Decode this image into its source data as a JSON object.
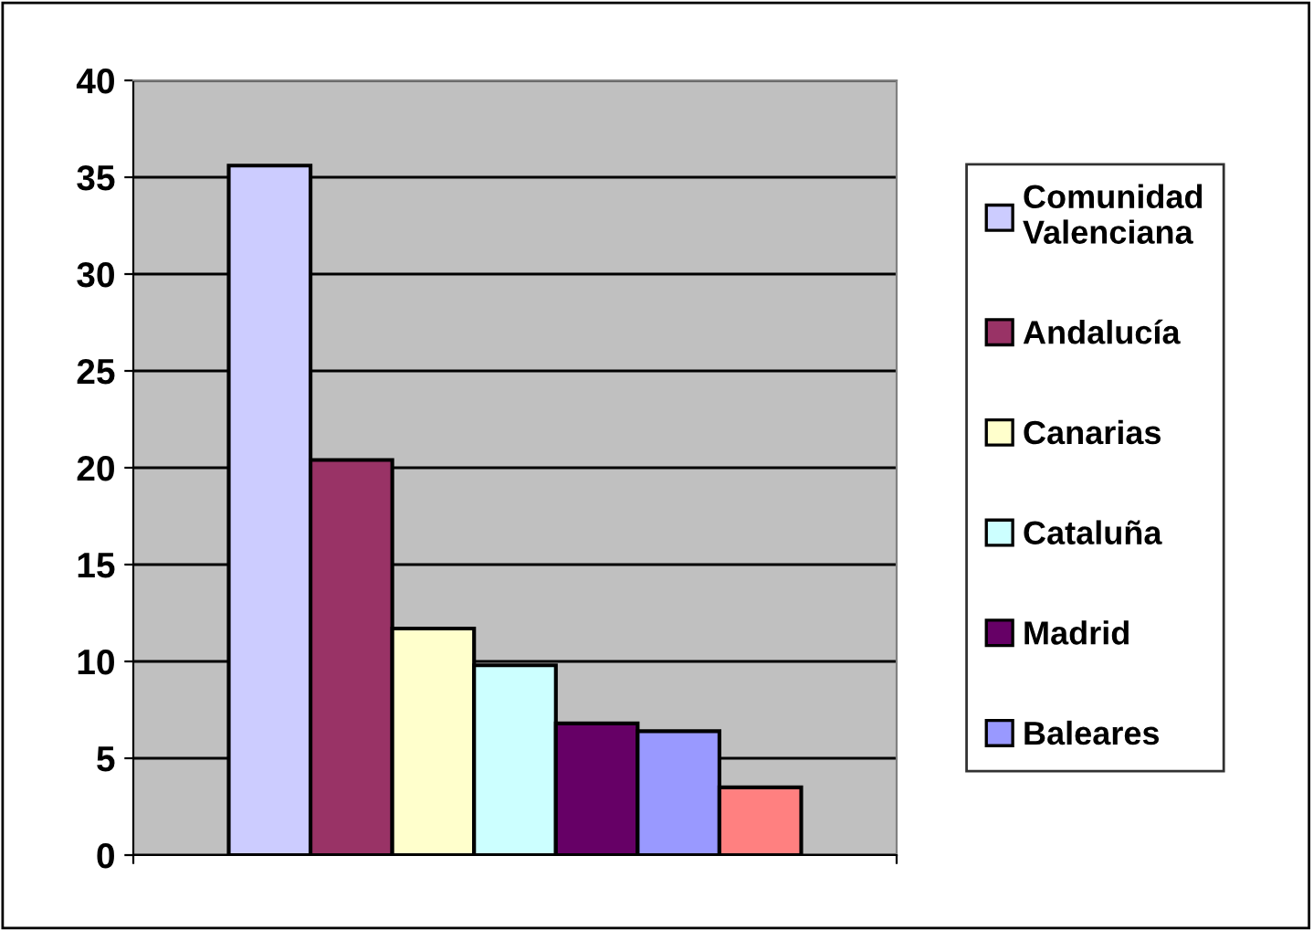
{
  "chart_data": {
    "type": "bar",
    "categories": [
      null
    ],
    "series": [
      {
        "name": "Comunidad Valenciana",
        "color": "#ccccff",
        "values": [
          35.6
        ]
      },
      {
        "name": "Andalucía",
        "color": "#993366",
        "values": [
          20.4
        ]
      },
      {
        "name": "Canarias",
        "color": "#ffffcc",
        "values": [
          11.7
        ]
      },
      {
        "name": "Cataluña",
        "color": "#ccffff",
        "values": [
          9.8
        ]
      },
      {
        "name": "Madrid",
        "color": "#660066",
        "values": [
          6.8
        ]
      },
      {
        "name": "Baleares",
        "color": "#9999ff",
        "values": [
          6.4
        ]
      },
      {
        "color": "#ff8080",
        "values": [
          3.5
        ]
      }
    ],
    "ylim": [
      0,
      40
    ],
    "yticks": [
      0,
      5,
      10,
      15,
      20,
      25,
      30,
      35,
      40
    ],
    "grid": "y",
    "legend": "right"
  }
}
